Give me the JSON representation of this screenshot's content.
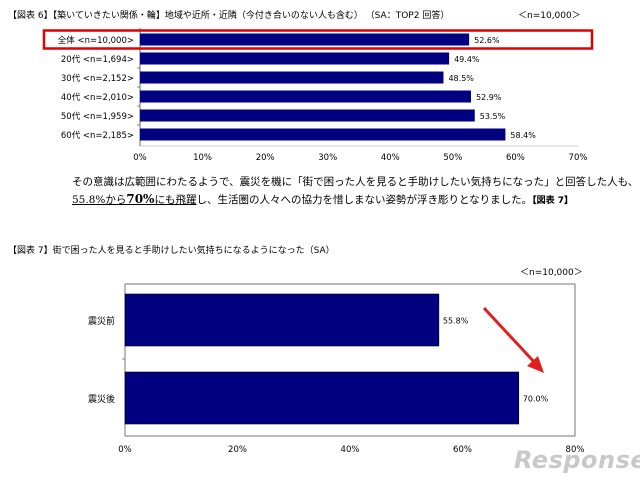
{
  "chart6": {
    "title": "【図表 6】【築いていきたい関係・輪】地域や近所・近隣（今付き合いのない人も含む） （SA：TOP2 回答）",
    "n_note": "＜n=10,000＞"
  },
  "paragraph": {
    "line1": "その意識は広範囲にわたるようで、震災を機に「街で困った人を見ると手助けしたい気持ちになった」と回答した人も、",
    "line2_a": "55.8%から",
    "line2_b": "70%",
    "line2_c": "にも飛躍",
    "line2_d": "し、生活圏の人々への協力を惜しまない姿勢が浮き彫りとなりました。",
    "line2_ref": "【図表 7】"
  },
  "chart7": {
    "title": "【図表 7】街で困った人を見ると手助けしたい気持ちになるようになった（SA）",
    "n_note": "＜n=10,000＞"
  },
  "logo": "Response.",
  "colors": {
    "bar": "#000080",
    "highlight": "#e00000",
    "arrow": "#e02020"
  },
  "chart_data": [
    {
      "type": "bar",
      "orientation": "horizontal",
      "title": "【図表 6】【築いていきたい関係・輪】地域や近所・近隣（今付き合いのない人も含む） （SA：TOP2 回答）",
      "categories": [
        "全体 <n=10,000>",
        "20代 <n=1,694>",
        "30代 <n=2,152>",
        "40代 <n=2,010>",
        "50代 <n=1,959>",
        "60代 <n=2,185>"
      ],
      "values": [
        52.6,
        49.4,
        48.5,
        52.9,
        53.5,
        58.4
      ],
      "value_labels": [
        "52.6%",
        "49.4%",
        "48.5%",
        "52.9%",
        "53.5%",
        "58.4%"
      ],
      "xlim": [
        0,
        70
      ],
      "ticks": [
        "0%",
        "10%",
        "20%",
        "30%",
        "40%",
        "50%",
        "60%",
        "70%"
      ],
      "highlighted_category": "全体 <n=10,000>"
    },
    {
      "type": "bar",
      "orientation": "horizontal",
      "title": "【図表 7】街で困った人を見ると手助けしたい気持ちになるようになった（SA）",
      "categories": [
        "震災前",
        "震災後"
      ],
      "values": [
        55.8,
        70.0
      ],
      "value_labels": [
        "55.8%",
        "70.0%"
      ],
      "xlim": [
        0,
        80
      ],
      "ticks": [
        "0%",
        "20%",
        "40%",
        "60%",
        "80%"
      ]
    }
  ]
}
